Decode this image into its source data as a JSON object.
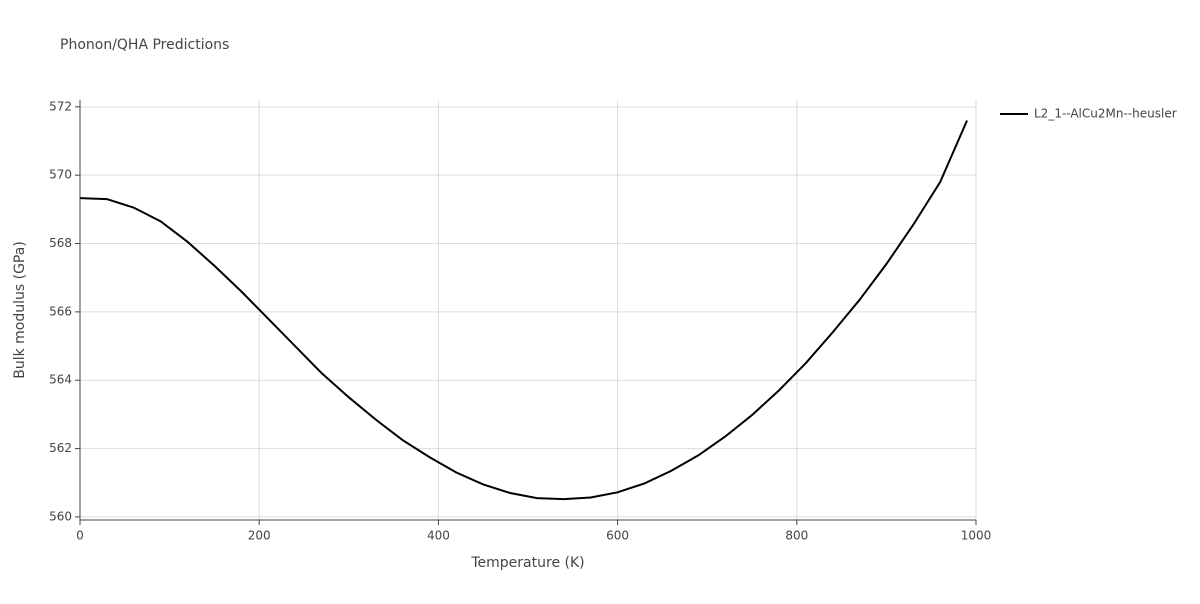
{
  "chart_data": {
    "type": "line",
    "title": "Phonon/QHA Predictions",
    "xlabel": "Temperature (K)",
    "ylabel": "Bulk modulus (GPa)",
    "x": [
      0,
      30,
      60,
      90,
      120,
      150,
      180,
      210,
      240,
      270,
      300,
      330,
      360,
      390,
      420,
      450,
      480,
      510,
      540,
      570,
      600,
      630,
      660,
      690,
      720,
      750,
      780,
      810,
      840,
      870,
      900,
      930,
      960,
      990
    ],
    "series": [
      {
        "name": "L2_1--AlCu2Mn--heusler",
        "color": "#000000",
        "values": [
          569.33,
          569.3,
          569.05,
          568.65,
          568.05,
          567.35,
          566.6,
          565.8,
          565.0,
          564.2,
          563.5,
          562.85,
          562.25,
          561.75,
          561.3,
          560.95,
          560.7,
          560.55,
          560.52,
          560.57,
          560.72,
          560.98,
          561.35,
          561.8,
          562.35,
          562.98,
          563.7,
          564.5,
          565.4,
          566.35,
          567.4,
          568.55,
          569.8,
          571.6
        ]
      }
    ],
    "xlim": [
      0,
      1000
    ],
    "xticks": [
      0,
      200,
      400,
      600,
      800,
      1000
    ],
    "ylim": [
      559.91,
      572.2
    ],
    "yticks": [
      560,
      562,
      564,
      566,
      568,
      570,
      572
    ],
    "grid": true,
    "legend": "right"
  }
}
